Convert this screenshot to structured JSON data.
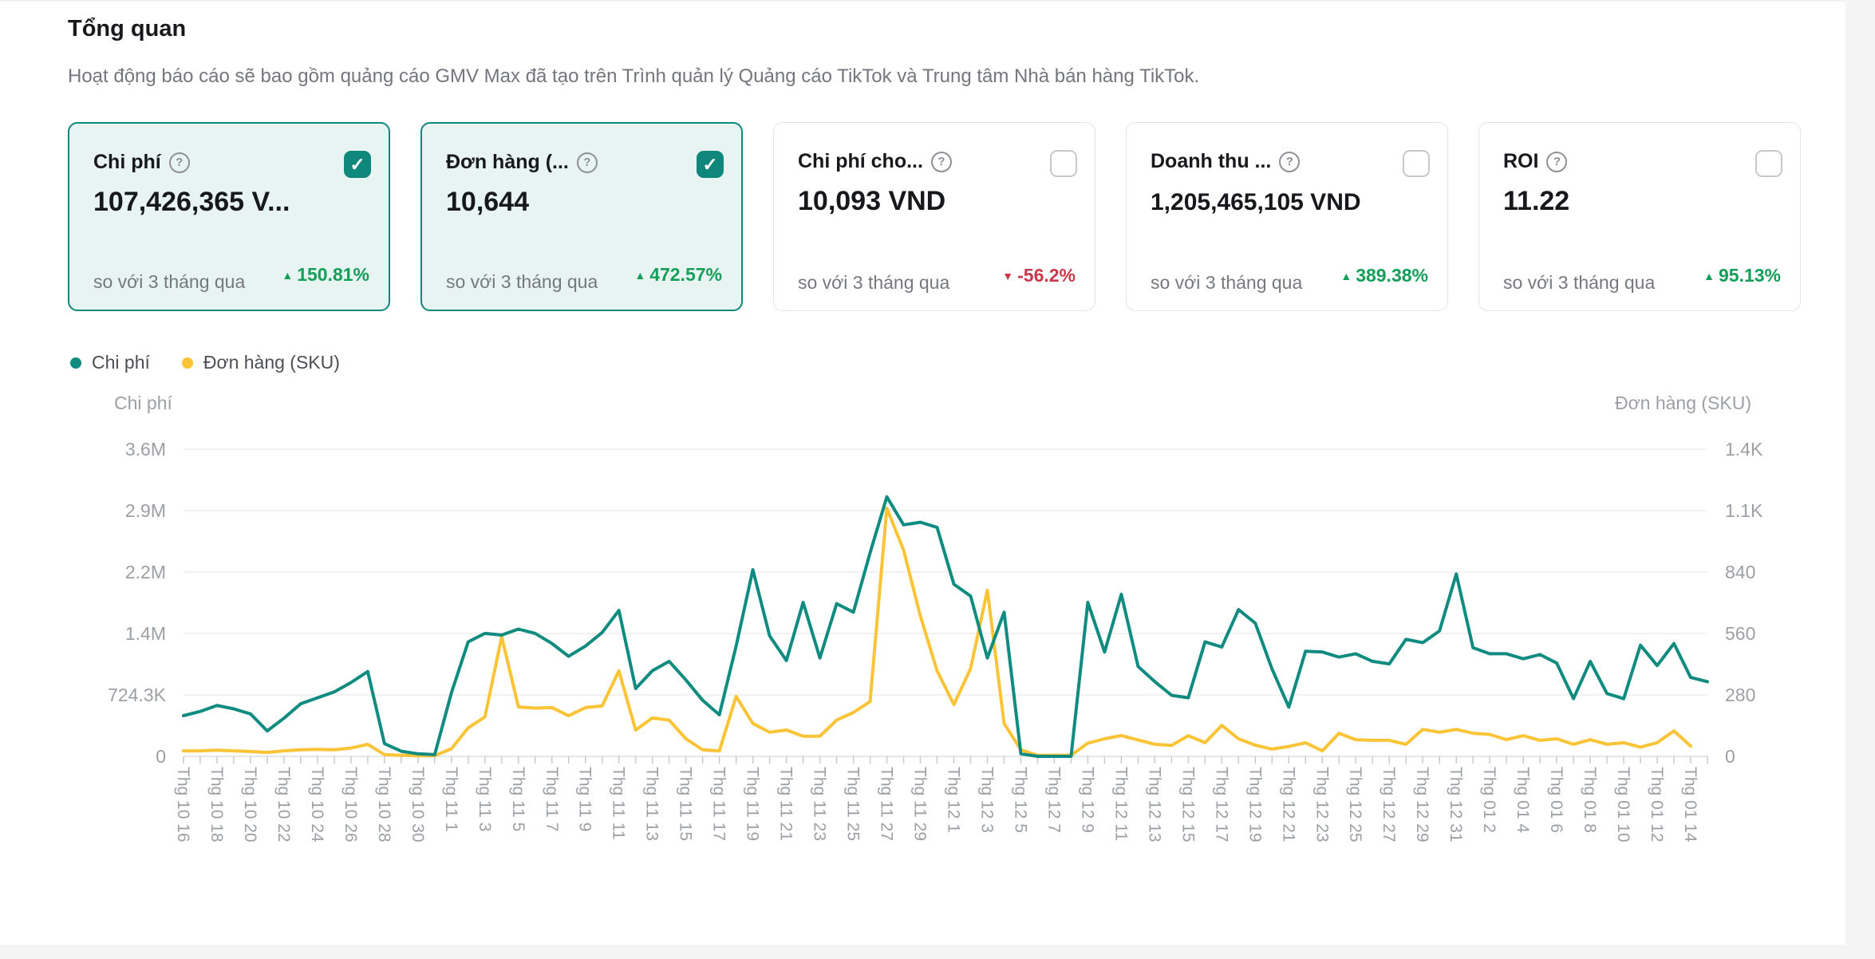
{
  "page": {
    "title": "Tổng quan",
    "subtitle": "Hoạt động báo cáo sẽ bao gồm quảng cáo GMV Max đã tạo trên Trình quản lý Quảng cáo TikTok và Trung tâm Nhà bán hàng TikTok."
  },
  "colors": {
    "accent_teal": "#0f877b",
    "series_teal": "#0f8b80",
    "series_yellow": "#fbc437",
    "positive_green": "#149e58",
    "negative_red": "#c9384a",
    "selected_card_bg": "#e7f4f1",
    "axis_text_gray": "#9ca0a5"
  },
  "cards": [
    {
      "label": "Chi phí",
      "value": "107,426,365 V...",
      "compare": "so với 3 tháng qua",
      "delta": "150.81%",
      "direction": "up",
      "selected": true
    },
    {
      "label": "Đơn hàng (...",
      "value": "10,644",
      "compare": "so với 3 tháng qua",
      "delta": "472.57%",
      "direction": "up",
      "selected": true
    },
    {
      "label": "Chi phí cho...",
      "value": "10,093 VND",
      "compare": "so với 3 tháng qua",
      "delta": "-56.2%",
      "direction": "down",
      "selected": false
    },
    {
      "label": "Doanh thu ...",
      "value": "1,205,465,105 VND",
      "compare": "so với 3 tháng qua",
      "delta": "389.38%",
      "direction": "up",
      "selected": false
    },
    {
      "label": "ROI",
      "value": "11.22",
      "compare": "so với 3 tháng qua",
      "delta": "95.13%",
      "direction": "up",
      "selected": false
    }
  ],
  "chart_data": {
    "type": "line",
    "title": "",
    "legend_position": "top-left",
    "grid": true,
    "x_label_note": "ticks daily; labels shown every 2 days, Oct 16 to Jan 14",
    "x_labels": [
      "Thg 10 16",
      "Thg 10 18",
      "Thg 10 20",
      "Thg 10 22",
      "Thg 10 24",
      "Thg 10 26",
      "Thg 10 28",
      "Thg 10 30",
      "Thg 11 1",
      "Thg 11 3",
      "Thg 11 5",
      "Thg 11 7",
      "Thg 11 9",
      "Thg 11 11",
      "Thg 11 13",
      "Thg 11 15",
      "Thg 11 17",
      "Thg 11 19",
      "Thg 11 21",
      "Thg 11 23",
      "Thg 11 25",
      "Thg 11 27",
      "Thg 11 29",
      "Thg 12 1",
      "Thg 12 3",
      "Thg 12 5",
      "Thg 12 7",
      "Thg 12 9",
      "Thg 12 11",
      "Thg 12 13",
      "Thg 12 15",
      "Thg 12 17",
      "Thg 12 19",
      "Thg 12 21",
      "Thg 12 23",
      "Thg 12 25",
      "Thg 12 27",
      "Thg 12 29",
      "Thg 12 31",
      "Thg 01 2",
      "Thg 01 4",
      "Thg 01 6",
      "Thg 01 8",
      "Thg 01 10",
      "Thg 01 12",
      "Thg 01 14"
    ],
    "left_axis": {
      "title": "Chi phí",
      "ticks_top_to_bottom": [
        "3.6M",
        "2.9M",
        "2.2M",
        "1.4M",
        "724.3K",
        "0"
      ],
      "max": 3621.5,
      "unit": "thousand VND"
    },
    "right_axis": {
      "title": "Đơn hàng (SKU)",
      "ticks_top_to_bottom": [
        "1.4K",
        "1.1K",
        "840",
        "560",
        "280",
        "0"
      ],
      "max": 1400,
      "unit": "orders"
    },
    "series": [
      {
        "name": "Chi phí",
        "axis": "left",
        "color": "#0f8b80",
        "unit": "thousand VND, daily estimates",
        "values": [
          480,
          530,
          600,
          560,
          500,
          300,
          450,
          620,
          690,
          760,
          870,
          1000,
          150,
          60,
          30,
          20,
          750,
          1350,
          1450,
          1430,
          1500,
          1450,
          1330,
          1180,
          1300,
          1460,
          1720,
          800,
          1010,
          1120,
          900,
          660,
          490,
          1300,
          2200,
          1420,
          1130,
          1815,
          1160,
          1800,
          1700,
          2400,
          3060,
          2730,
          2760,
          2700,
          2030,
          1890,
          1160,
          1700,
          30,
          0,
          0,
          0,
          1815,
          1230,
          1910,
          1060,
          880,
          720,
          690,
          1350,
          1290,
          1730,
          1570,
          1030,
          580,
          1240,
          1230,
          1170,
          1210,
          1120,
          1090,
          1380,
          1340,
          1480,
          2150,
          1280,
          1210,
          1210,
          1150,
          1200,
          1100,
          680,
          1120,
          740,
          680,
          1310,
          1070,
          1330,
          930,
          880
        ]
      },
      {
        "name": "Đơn hàng (SKU)",
        "axis": "right",
        "color": "#fbc437",
        "unit": "orders, daily estimates",
        "values": [
          25,
          25,
          28,
          25,
          22,
          18,
          25,
          30,
          32,
          30,
          38,
          55,
          8,
          5,
          3,
          3,
          35,
          130,
          180,
          545,
          225,
          220,
          222,
          185,
          222,
          230,
          390,
          120,
          175,
          165,
          80,
          30,
          25,
          273,
          150,
          110,
          120,
          92,
          92,
          165,
          200,
          250,
          1131,
          940,
          640,
          390,
          236,
          400,
          757,
          150,
          30,
          5,
          5,
          5,
          60,
          80,
          95,
          75,
          55,
          50,
          94,
          62,
          141,
          80,
          51,
          33,
          45,
          62,
          25,
          105,
          76,
          73,
          73,
          55,
          123,
          110,
          123,
          105,
          100,
          76,
          94,
          73,
          80,
          55,
          76,
          55,
          62,
          42,
          62,
          116,
          47
        ]
      }
    ]
  }
}
